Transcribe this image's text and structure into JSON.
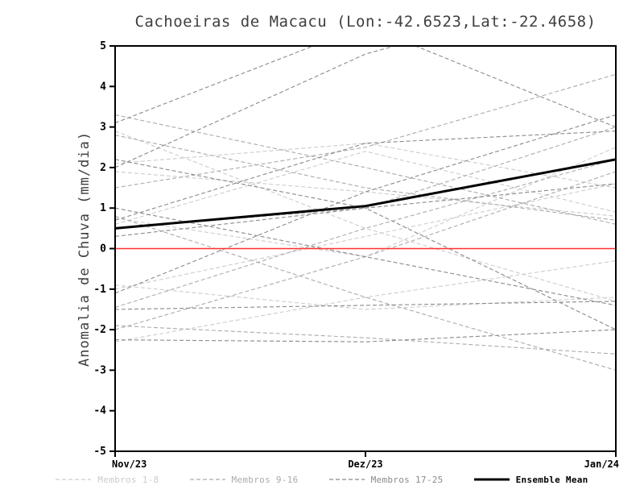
{
  "page": {
    "background": "#ffffff"
  },
  "chart_data": {
    "type": "line",
    "title": "Cachoeiras de Macacu (Lon:-42.6523,Lat:-22.4658)",
    "ylabel": "Anomalia de Chuva (mm/dia)",
    "xlabel": "",
    "x_ticklabels": [
      "Nov/23",
      "Dez/23",
      "Jan/24"
    ],
    "x_positions": [
      0,
      0.5,
      1
    ],
    "ylim": [
      -5,
      5
    ],
    "ytick_step": 1,
    "grid": false,
    "legend_position": "bottom",
    "axis_color": "#000000",
    "zero_line": {
      "y": 0,
      "color": "#ff3030"
    },
    "groups": [
      {
        "label": "Membros 1-8",
        "color": "#cccccc"
      },
      {
        "label": "Membros 9-16",
        "color": "#ababab"
      },
      {
        "label": "Membros 17-25",
        "color": "#8a8a8a"
      }
    ],
    "members": [
      {
        "group": 0,
        "values": [
          2.9,
          0.5,
          -1.3
        ]
      },
      {
        "group": 0,
        "values": [
          0.6,
          2.4,
          0.9
        ]
      },
      {
        "group": 0,
        "values": [
          -1.0,
          0.3,
          1.6
        ]
      },
      {
        "group": 0,
        "values": [
          1.9,
          1.4,
          0.8
        ]
      },
      {
        "group": 0,
        "values": [
          -2.3,
          -1.2,
          -0.3
        ]
      },
      {
        "group": 0,
        "values": [
          0.75,
          -0.2,
          2.5
        ]
      },
      {
        "group": 0,
        "values": [
          2.1,
          2.6,
          1.5
        ]
      },
      {
        "group": 0,
        "values": [
          -0.9,
          -1.5,
          -1.2
        ]
      },
      {
        "group": 1,
        "values": [
          3.3,
          2.0,
          0.6
        ]
      },
      {
        "group": 1,
        "values": [
          0.5,
          1.0,
          3.0
        ]
      },
      {
        "group": 1,
        "values": [
          -1.45,
          0.5,
          2.2
        ]
      },
      {
        "group": 1,
        "values": [
          2.8,
          1.5,
          0.7
        ]
      },
      {
        "group": 1,
        "values": [
          -1.9,
          -2.2,
          -2.6
        ]
      },
      {
        "group": 1,
        "values": [
          0.8,
          -1.2,
          -3.0
        ]
      },
      {
        "group": 1,
        "values": [
          1.5,
          2.5,
          4.3
        ]
      },
      {
        "group": 1,
        "values": [
          -2.0,
          -0.2,
          1.9
        ]
      },
      {
        "group": 2,
        "values": [
          0.3,
          1.0,
          1.6
        ]
      },
      {
        "group": 2,
        "values": [
          2.0,
          4.8,
          6.5
        ]
      },
      {
        "group": 2,
        "values": [
          -1.1,
          1.4,
          3.3
        ]
      },
      {
        "group": 2,
        "values": [
          3.1,
          5.5,
          3.0
        ]
      },
      {
        "group": 2,
        "values": [
          -2.25,
          -2.3,
          -2.0
        ]
      },
      {
        "group": 2,
        "values": [
          1.0,
          -0.2,
          -1.4
        ]
      },
      {
        "group": 2,
        "values": [
          -1.5,
          -1.4,
          -1.3
        ]
      },
      {
        "group": 2,
        "values": [
          0.7,
          2.6,
          2.9
        ]
      },
      {
        "group": 2,
        "values": [
          2.2,
          1.0,
          -2.0
        ]
      }
    ],
    "ensemble_mean": {
      "label": "Ensemble Mean",
      "color": "#000000",
      "values": [
        0.5,
        1.05,
        2.2
      ]
    }
  }
}
